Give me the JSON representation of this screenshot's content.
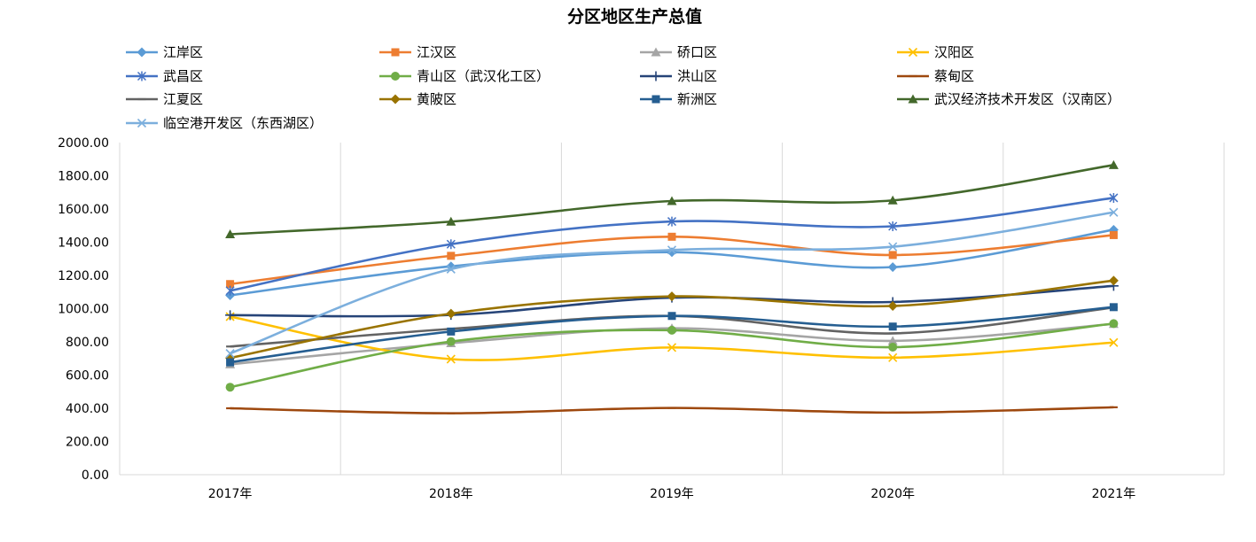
{
  "chart_data": {
    "type": "line",
    "title": "分区地区生产总值",
    "categories": [
      "2017年",
      "2018年",
      "2019年",
      "2020年",
      "2021年"
    ],
    "ylim": [
      0,
      2000
    ],
    "y_ticks": [
      "0.00",
      "200.00",
      "400.00",
      "600.00",
      "800.00",
      "1000.00",
      "1200.00",
      "1400.00",
      "1600.00",
      "1800.00",
      "2000.00"
    ],
    "grid": "vertical",
    "legend_position": "top",
    "series": [
      {
        "name": "江岸区",
        "values": [
          1080,
          1255,
          1340,
          1250,
          1475
        ],
        "color": "#5B9BD5",
        "marker": "diamond"
      },
      {
        "name": "江汉区",
        "values": [
          1148,
          1318,
          1433,
          1323,
          1443
        ],
        "color": "#ED7D31",
        "marker": "square"
      },
      {
        "name": "硚口区",
        "values": [
          665,
          792,
          882,
          806,
          908
        ],
        "color": "#A5A5A5",
        "marker": "triangle"
      },
      {
        "name": "汉阳区",
        "values": [
          952,
          696,
          766,
          705,
          796
        ],
        "color": "#FFC000",
        "marker": "x"
      },
      {
        "name": "武昌区",
        "values": [
          1108,
          1388,
          1525,
          1496,
          1667
        ],
        "color": "#4472C4",
        "marker": "asterisk"
      },
      {
        "name": "青山区（武汉化工区）",
        "values": [
          527,
          802,
          870,
          768,
          910
        ],
        "color": "#70AD47",
        "marker": "circle"
      },
      {
        "name": "洪山区",
        "values": [
          961,
          962,
          1066,
          1040,
          1137
        ],
        "color": "#264478",
        "marker": "plus"
      },
      {
        "name": "蔡甸区",
        "values": [
          400,
          370,
          402,
          374,
          406
        ],
        "color": "#9E480E",
        "marker": "dash"
      },
      {
        "name": "江夏区",
        "values": [
          772,
          878,
          956,
          851,
          1007
        ],
        "color": "#636363",
        "marker": "dash"
      },
      {
        "name": "黄陂区",
        "values": [
          703,
          970,
          1074,
          1016,
          1169
        ],
        "color": "#997300",
        "marker": "diamond"
      },
      {
        "name": "新洲区",
        "values": [
          677,
          862,
          956,
          892,
          1009
        ],
        "color": "#255E91",
        "marker": "square"
      },
      {
        "name": "武汉经济技术开发区（汉南区）",
        "values": [
          1448,
          1524,
          1648,
          1652,
          1865
        ],
        "color": "#43682B",
        "marker": "triangle"
      },
      {
        "name": "临空港开发区（东西湖区）",
        "values": [
          730,
          1238,
          1353,
          1373,
          1580
        ],
        "color": "#7CAFDD",
        "marker": "x"
      }
    ]
  }
}
